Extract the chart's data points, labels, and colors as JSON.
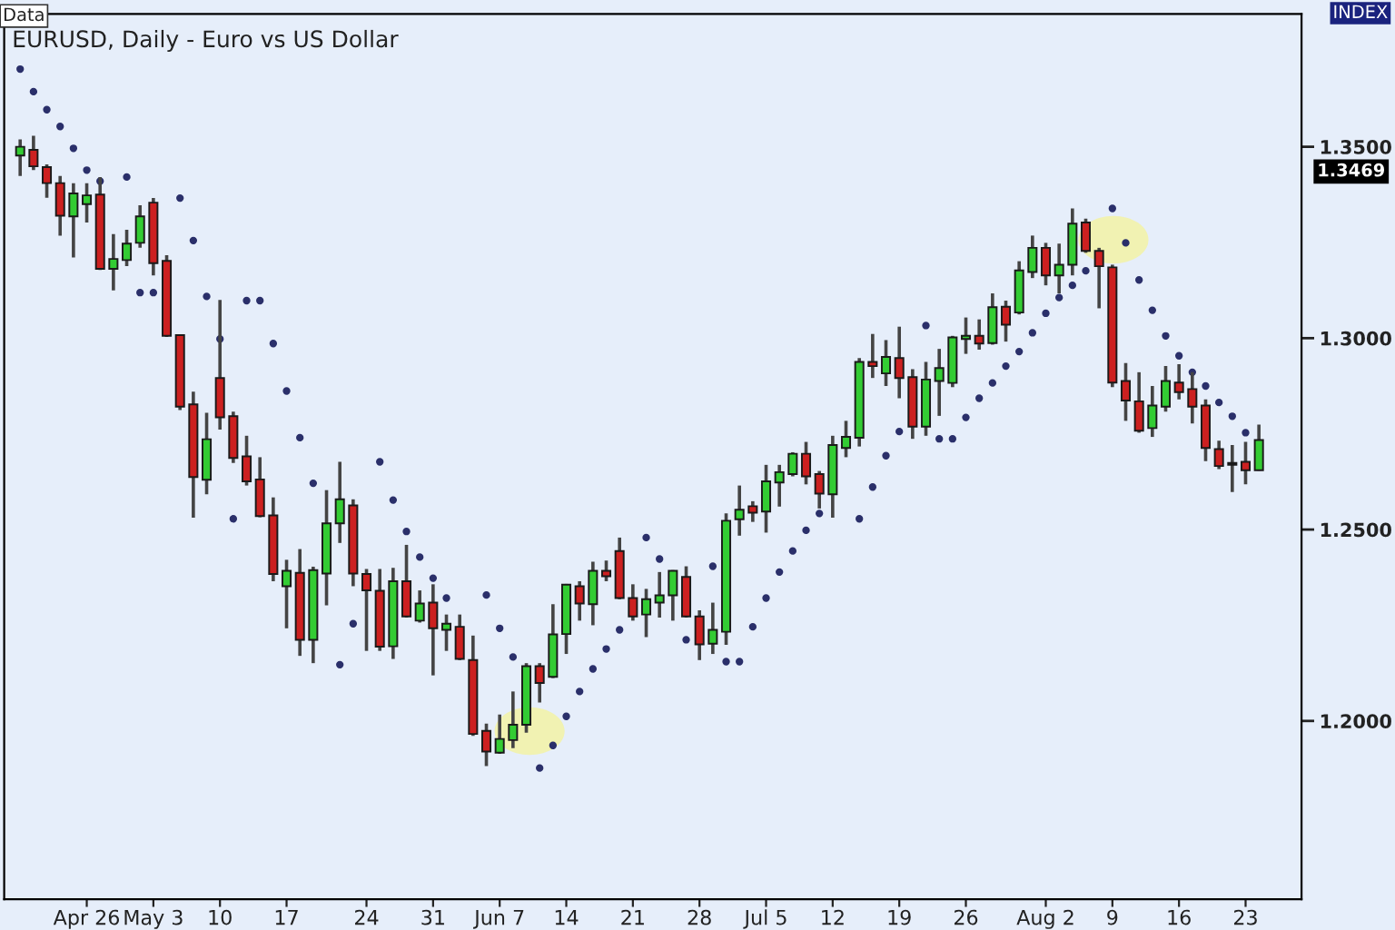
{
  "chart_data": {
    "type": "candlestick",
    "title": "EURUSD, Daily - Euro vs US Dollar",
    "annotations": [
      "Data",
      "INDEX",
      "1.3469"
    ],
    "categories": [
      null,
      null,
      null,
      null,
      null,
      "Apr 26",
      null,
      null,
      null,
      null,
      "May 3",
      null,
      null,
      null,
      null,
      "10",
      null,
      null,
      null,
      null,
      "17",
      null,
      null,
      null,
      null,
      null,
      "24",
      null,
      null,
      null,
      null,
      "31",
      null,
      null,
      null,
      null,
      "Jun 7",
      null,
      null,
      null,
      null,
      "14",
      null,
      null,
      null,
      null,
      "21",
      null,
      null,
      null,
      null,
      "28",
      null,
      null,
      null,
      null,
      "Jul 5",
      null,
      null,
      null,
      null,
      "12",
      null,
      null,
      null,
      null,
      "19",
      null,
      null,
      null,
      null,
      "26",
      null,
      null,
      null,
      null,
      null,
      "Aug 2",
      null,
      null,
      null,
      null,
      "9",
      null,
      null,
      null,
      null,
      "16",
      null,
      null,
      null,
      null,
      "23",
      null
    ],
    "ohlc": [
      [
        1.3477,
        1.3519,
        1.3424,
        1.35
      ],
      [
        1.3492,
        1.3529,
        1.3439,
        1.3449
      ],
      [
        1.3447,
        1.3454,
        1.3367,
        1.3405
      ],
      [
        1.3405,
        1.3424,
        1.3268,
        1.332
      ],
      [
        1.3318,
        1.3405,
        1.3211,
        1.3378
      ],
      [
        1.335,
        1.3405,
        1.3302,
        1.3373
      ],
      [
        1.3375,
        1.3421,
        1.3178,
        1.3181
      ],
      [
        1.3181,
        1.3272,
        1.3125,
        1.3207
      ],
      [
        1.3204,
        1.3283,
        1.3188,
        1.3247
      ],
      [
        1.3249,
        1.3347,
        1.3236,
        1.3318
      ],
      [
        1.3354,
        1.3366,
        1.3164,
        1.3196
      ],
      [
        1.3202,
        1.3217,
        1.3003,
        1.3006
      ],
      [
        1.3008,
        1.301,
        1.2812,
        1.2821
      ],
      [
        1.2827,
        1.286,
        1.2531,
        1.2637
      ],
      [
        1.263,
        1.2805,
        1.2592,
        1.2736
      ],
      [
        1.2896,
        1.31,
        1.2761,
        1.2793
      ],
      [
        1.2796,
        1.2808,
        1.2674,
        1.2687
      ],
      [
        1.2691,
        1.2745,
        1.2615,
        1.2626
      ],
      [
        1.2631,
        1.2689,
        1.2532,
        1.2535
      ],
      [
        1.2537,
        1.2584,
        1.2365,
        1.2384
      ],
      [
        1.2352,
        1.2421,
        1.2242,
        1.2392
      ],
      [
        1.2387,
        1.2449,
        1.217,
        1.2212
      ],
      [
        1.2212,
        1.2403,
        1.2151,
        1.2394
      ],
      [
        1.2385,
        1.2603,
        1.2302,
        1.2516
      ],
      [
        1.2516,
        1.2677,
        1.2465,
        1.2579
      ],
      [
        1.2563,
        1.2579,
        1.2352,
        1.2385
      ],
      [
        1.2384,
        1.2397,
        1.2183,
        1.2341
      ],
      [
        1.234,
        1.2397,
        1.2183,
        1.2194
      ],
      [
        1.2195,
        1.24,
        1.2162,
        1.2365
      ],
      [
        1.2365,
        1.246,
        1.227,
        1.2273
      ],
      [
        1.2262,
        1.2341,
        1.2257,
        1.2307
      ],
      [
        1.2309,
        1.2357,
        1.2119,
        1.2242
      ],
      [
        1.2238,
        1.2278,
        1.2183,
        1.2254
      ],
      [
        1.2246,
        1.2278,
        1.2159,
        1.2162
      ],
      [
        1.2159,
        1.2223,
        1.1961,
        1.1966
      ],
      [
        1.1974,
        1.1993,
        1.1882,
        1.192
      ],
      [
        1.1917,
        1.2017,
        1.1914,
        1.1953
      ],
      [
        1.195,
        1.2077,
        1.1929,
        1.199
      ],
      [
        1.199,
        1.2151,
        1.1969,
        1.2143
      ],
      [
        1.2143,
        1.2151,
        1.2048,
        1.2099
      ],
      [
        1.2115,
        1.2305,
        1.2112,
        1.2226
      ],
      [
        1.2227,
        1.2358,
        1.2175,
        1.2356
      ],
      [
        1.2352,
        1.2365,
        1.2262,
        1.2307
      ],
      [
        1.2305,
        1.2416,
        1.225,
        1.2392
      ],
      [
        1.2392,
        1.2419,
        1.2365,
        1.2378
      ],
      [
        1.2444,
        1.2479,
        1.2318,
        1.2321
      ],
      [
        1.2321,
        1.2357,
        1.2262,
        1.2273
      ],
      [
        1.2278,
        1.2345,
        1.2219,
        1.2318
      ],
      [
        1.2309,
        1.2389,
        1.227,
        1.2328
      ],
      [
        1.2328,
        1.2394,
        1.2262,
        1.2392
      ],
      [
        1.2376,
        1.2404,
        1.227,
        1.2273
      ],
      [
        1.2273,
        1.2289,
        1.2159,
        1.22
      ],
      [
        1.2202,
        1.2309,
        1.2175,
        1.2238
      ],
      [
        1.2233,
        1.2542,
        1.2199,
        1.2523
      ],
      [
        1.2527,
        1.2615,
        1.2484,
        1.2552
      ],
      [
        1.2561,
        1.2574,
        1.252,
        1.2544
      ],
      [
        1.2547,
        1.2669,
        1.2492,
        1.2626
      ],
      [
        1.2623,
        1.2669,
        1.256,
        1.265
      ],
      [
        1.2645,
        1.2702,
        1.2639,
        1.2698
      ],
      [
        1.2698,
        1.2729,
        1.2618,
        1.2639
      ],
      [
        1.2645,
        1.2653,
        1.2555,
        1.2594
      ],
      [
        1.2592,
        1.2745,
        1.2531,
        1.2721
      ],
      [
        1.2713,
        1.2784,
        1.2689,
        1.2742
      ],
      [
        1.274,
        1.2948,
        1.2717,
        1.2938
      ],
      [
        1.2938,
        1.3011,
        1.2896,
        1.2927
      ],
      [
        1.2908,
        1.2995,
        1.2875,
        1.2951
      ],
      [
        1.2948,
        1.303,
        1.2843,
        1.2896
      ],
      [
        1.2898,
        1.2919,
        1.2737,
        1.2769
      ],
      [
        1.2769,
        1.2938,
        1.2745,
        1.2892
      ],
      [
        1.2888,
        1.2972,
        1.2797,
        1.2922
      ],
      [
        1.2883,
        1.3006,
        1.2872,
        1.3002
      ],
      [
        1.2998,
        1.3054,
        1.2959,
        1.3006
      ],
      [
        1.3006,
        1.3049,
        1.297,
        1.2986
      ],
      [
        1.2987,
        1.3117,
        1.2983,
        1.3081
      ],
      [
        1.3082,
        1.3098,
        1.2991,
        1.3035
      ],
      [
        1.3067,
        1.3201,
        1.3062,
        1.3177
      ],
      [
        1.3173,
        1.3268,
        1.3157,
        1.3236
      ],
      [
        1.3236,
        1.3249,
        1.3138,
        1.3164
      ],
      [
        1.3164,
        1.3247,
        1.3117,
        1.3192
      ],
      [
        1.3192,
        1.3339,
        1.3164,
        1.3299
      ],
      [
        1.3302,
        1.3312,
        1.3223,
        1.3228
      ],
      [
        1.3228,
        1.3236,
        1.3078,
        1.3188
      ],
      [
        1.3185,
        1.3192,
        1.2872,
        1.2884
      ],
      [
        1.2888,
        1.2935,
        1.2784,
        1.2837
      ],
      [
        1.2835,
        1.2911,
        1.2753,
        1.2758
      ],
      [
        1.2765,
        1.2875,
        1.2742,
        1.2824
      ],
      [
        1.2821,
        1.2927,
        1.2808,
        1.2888
      ],
      [
        1.2884,
        1.2932,
        1.284,
        1.2859
      ],
      [
        1.2867,
        1.2911,
        1.2777,
        1.2821
      ],
      [
        1.2824,
        1.284,
        1.2679,
        1.2713
      ],
      [
        1.271,
        1.2732,
        1.2658,
        1.2666
      ],
      [
        1.2674,
        1.2721,
        1.2598,
        1.2669
      ],
      [
        1.2677,
        1.2729,
        1.2618,
        1.2655
      ],
      [
        1.2655,
        1.2774,
        1.2654,
        1.2734
      ]
    ],
    "colors": [
      "#33cc33",
      "#cc2020",
      "#cc2020",
      "#cc2020",
      "#33cc33",
      "#33cc33",
      "#cc2020",
      "#33cc33",
      "#33cc33",
      "#33cc33",
      "#cc2020",
      "#cc2020",
      "#cc2020",
      "#cc2020",
      "#33cc33",
      "#cc2020",
      "#cc2020",
      "#cc2020",
      "#cc2020",
      "#cc2020",
      "#33cc33",
      "#cc2020",
      "#33cc33",
      "#33cc33",
      "#33cc33",
      "#cc2020",
      "#cc2020",
      "#cc2020",
      "#33cc33",
      "#cc2020",
      "#33cc33",
      "#cc2020",
      "#33cc33",
      "#cc2020",
      "#cc2020",
      "#cc2020",
      "#33cc33",
      "#33cc33",
      "#33cc33",
      "#cc2020",
      "#33cc33",
      "#33cc33",
      "#cc2020",
      "#33cc33",
      "#cc2020",
      "#cc2020",
      "#cc2020",
      "#33cc33",
      "#33cc33",
      "#33cc33",
      "#cc2020",
      "#cc2020",
      "#33cc33",
      "#33cc33",
      "#33cc33",
      "#cc2020",
      "#33cc33",
      "#33cc33",
      "#33cc33",
      "#cc2020",
      "#cc2020",
      "#33cc33",
      "#33cc33",
      "#33cc33",
      "#cc2020",
      "#33cc33",
      "#cc2020",
      "#cc2020",
      "#33cc33",
      "#33cc33",
      "#33cc33",
      "#33cc33",
      "#cc2020",
      "#33cc33",
      "#cc2020",
      "#33cc33",
      "#33cc33",
      "#cc2020",
      "#33cc33",
      "#33cc33",
      "#cc2020",
      "#cc2020",
      "#cc2020",
      "#cc2020",
      "#cc2020",
      "#33cc33",
      "#33cc33",
      "#cc2020",
      "#cc2020",
      "#cc2020",
      "#cc2020",
      "#cc2020",
      "#cc2020",
      "#33cc33"
    ],
    "series": [
      {
        "type": "scatter",
        "color": "#2a2f6a",
        "marker": "circle",
        "values": [
          1.3703,
          1.3644,
          1.3597,
          1.3553,
          1.3496,
          1.3439,
          1.341,
          null,
          1.3421,
          1.3119,
          1.3119,
          null,
          1.3366,
          1.3255,
          1.3109,
          1.2998,
          1.2528,
          1.3098,
          1.3098,
          1.2986,
          1.2862,
          1.274,
          1.2621,
          null,
          1.2147,
          1.2254,
          null,
          1.2677,
          1.2577,
          1.2495,
          1.2428,
          1.2373,
          1.2321,
          null,
          null,
          1.2329,
          1.2242,
          1.2167,
          null,
          1.1877,
          1.1936,
          1.2012,
          1.2077,
          1.2136,
          1.2188,
          1.2238,
          null,
          1.2479,
          1.2423,
          null,
          1.2212,
          null,
          1.2404,
          1.2155,
          1.2155,
          1.2246,
          1.2321,
          1.2389,
          1.2444,
          1.2498,
          1.2542,
          null,
          null,
          1.2528,
          1.2611,
          1.2693,
          1.2756,
          null,
          1.3033,
          1.2737,
          1.2737,
          1.2793,
          1.2843,
          1.2883,
          1.2927,
          1.2965,
          1.3014,
          1.3065,
          1.3106,
          1.3138,
          1.3176,
          null,
          1.3339,
          1.3249,
          1.3152,
          1.3073,
          1.3006,
          1.2954,
          1.2911,
          1.2875,
          1.2832,
          1.2796,
          1.2753,
          null
        ]
      }
    ],
    "ylim": [
      1.1534,
      1.3847
    ],
    "yticks": [
      {
        "value": 1.2,
        "label": "1.2000"
      },
      {
        "value": 1.25,
        "label": "1.2500"
      },
      {
        "value": 1.3,
        "label": "1.3000"
      },
      {
        "value": 1.35,
        "label": "1.3500"
      }
    ],
    "grid": false,
    "legend": false
  }
}
